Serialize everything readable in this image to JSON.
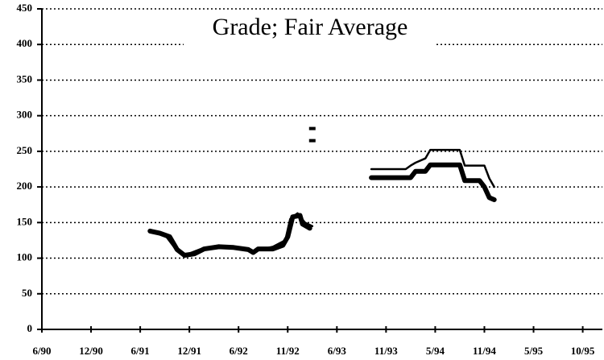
{
  "chart_data": {
    "type": "line",
    "title": "Grade; Fair Average",
    "xlim": [
      0,
      11.4
    ],
    "xticks": [
      {
        "value": 0,
        "label": "6/90"
      },
      {
        "value": 1,
        "label": "12/90"
      },
      {
        "value": 2,
        "label": "6/91"
      },
      {
        "value": 3,
        "label": "12/91"
      },
      {
        "value": 4,
        "label": "6/92"
      },
      {
        "value": 5,
        "label": "11/92"
      },
      {
        "value": 6,
        "label": "6/93"
      },
      {
        "value": 7,
        "label": "11/93"
      },
      {
        "value": 8,
        "label": "5/94"
      },
      {
        "value": 9,
        "label": "11/94"
      },
      {
        "value": 10,
        "label": "5/95"
      },
      {
        "value": 11,
        "label": "10/95"
      }
    ],
    "ylim": [
      0,
      450
    ],
    "yticks": [
      0,
      50,
      100,
      150,
      200,
      250,
      300,
      350,
      400,
      450
    ],
    "grid": true,
    "series": [
      {
        "color": "#000000",
        "width": 6,
        "x": [
          2.2,
          2.4,
          2.6,
          2.75,
          2.9,
          3.1,
          3.3,
          3.6,
          3.9,
          4.2,
          4.3,
          4.4,
          4.7,
          4.9,
          5.0,
          5.1,
          5.25,
          5.3,
          5.45,
          null,
          6.7,
          7.5,
          7.6,
          7.8,
          7.9,
          8.5,
          8.6,
          8.9,
          9.0,
          9.1,
          9.2
        ],
        "values": [
          138,
          135,
          130,
          112,
          104,
          106,
          113,
          116,
          115,
          112,
          108,
          113,
          113,
          118,
          130,
          158,
          160,
          148,
          142,
          null,
          213,
          213,
          222,
          222,
          231,
          231,
          209,
          209,
          200,
          185,
          182
        ]
      },
      {
        "color": "#000000",
        "width": 2.5,
        "x": [
          2.2,
          2.5,
          2.75,
          2.9,
          3.2,
          3.6,
          4.0,
          4.3,
          4.7,
          4.95,
          5.05,
          5.2,
          5.35,
          5.5,
          null,
          6.7,
          7.4,
          7.5,
          7.6,
          7.8,
          7.9,
          8.5,
          8.6,
          9.0,
          9.1,
          9.2
        ],
        "values": [
          140,
          133,
          110,
          104,
          112,
          118,
          114,
          110,
          116,
          125,
          155,
          163,
          150,
          145,
          null,
          225,
          225,
          230,
          234,
          240,
          252,
          252,
          230,
          230,
          212,
          200
        ]
      },
      {
        "color": "#000000",
        "marker": true,
        "x": [
          5.5,
          5.5
        ],
        "values": [
          282,
          265
        ]
      }
    ]
  }
}
